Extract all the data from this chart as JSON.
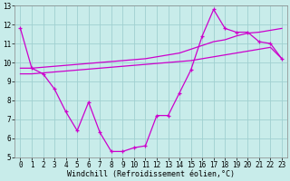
{
  "x_hours": [
    0,
    1,
    2,
    3,
    4,
    5,
    6,
    7,
    8,
    9,
    10,
    11,
    12,
    13,
    14,
    15,
    16,
    17,
    18,
    19,
    20,
    21,
    22,
    23
  ],
  "line_main": [
    11.8,
    9.7,
    9.4,
    8.6,
    7.4,
    6.4,
    7.9,
    6.3,
    5.3,
    5.3,
    5.5,
    5.6,
    7.2,
    7.2,
    8.4,
    9.6,
    11.4,
    12.8,
    11.8,
    11.6,
    11.6,
    11.1,
    11.0,
    10.2
  ],
  "line_trend_upper": [
    9.7,
    9.7,
    9.75,
    9.8,
    9.85,
    9.9,
    9.95,
    10.0,
    10.05,
    10.1,
    10.15,
    10.2,
    10.3,
    10.4,
    10.5,
    10.7,
    10.9,
    11.1,
    11.2,
    11.4,
    11.55,
    11.6,
    11.7,
    11.8
  ],
  "line_trend_lower": [
    9.4,
    9.4,
    9.45,
    9.5,
    9.55,
    9.6,
    9.65,
    9.7,
    9.75,
    9.8,
    9.85,
    9.9,
    9.95,
    10.0,
    10.05,
    10.1,
    10.2,
    10.3,
    10.4,
    10.5,
    10.6,
    10.7,
    10.8,
    10.2
  ],
  "bg_color": "#c8ecea",
  "line_color": "#cc00cc",
  "grid_color": "#a0d0d0",
  "xlabel": "Windchill (Refroidissement éolien,°C)",
  "ylim": [
    5,
    13
  ],
  "xlim": [
    -0.5,
    23.5
  ],
  "yticks": [
    5,
    6,
    7,
    8,
    9,
    10,
    11,
    12,
    13
  ],
  "xticks": [
    0,
    1,
    2,
    3,
    4,
    5,
    6,
    7,
    8,
    9,
    10,
    11,
    12,
    13,
    14,
    15,
    16,
    17,
    18,
    19,
    20,
    21,
    22,
    23
  ]
}
